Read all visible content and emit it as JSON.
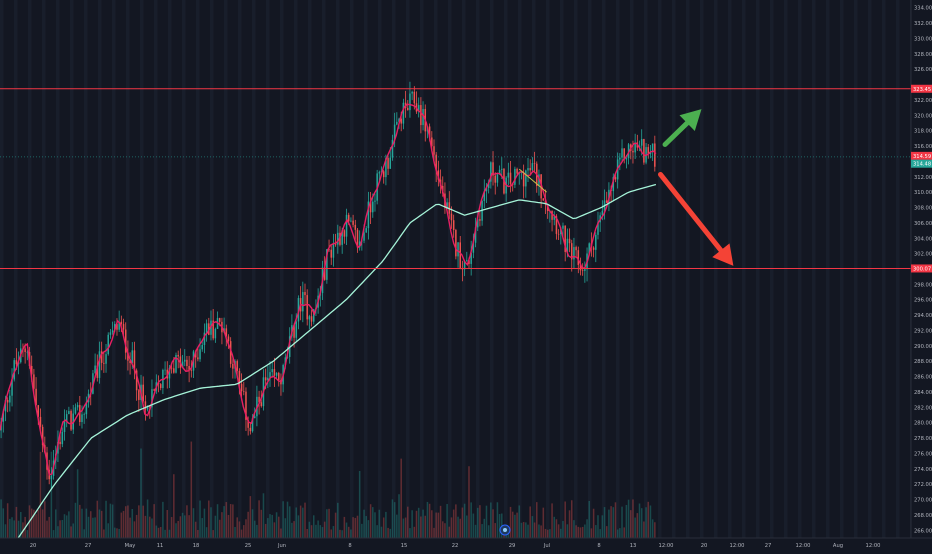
{
  "chart_data": {
    "type": "candlestick",
    "title": "",
    "colors": {
      "background": "#131722",
      "up": "#26a69a",
      "down": "#ef5350",
      "fast_ma": "#e91e63",
      "slow_ma": "#a5f3d8",
      "resistance": "#f23645",
      "price_line": "#26a69a",
      "up_arrow": "#4caf50",
      "down_arrow": "#f44336",
      "axis_text": "#b2b5be"
    },
    "y_axis": {
      "ylim": [
        265,
        335
      ],
      "ticks": [
        "266.00",
        "268.00",
        "270.00",
        "272.00",
        "274.00",
        "276.00",
        "278.00",
        "280.00",
        "282.00",
        "284.00",
        "286.00",
        "288.00",
        "290.00",
        "292.00",
        "294.00",
        "296.00",
        "298.00",
        "302.00",
        "304.00",
        "306.00",
        "308.00",
        "310.00",
        "312.00",
        "316.00",
        "318.00",
        "320.00",
        "322.00",
        "326.00",
        "328.00",
        "330.00",
        "332.00",
        "334.00"
      ]
    },
    "x_axis": {
      "labels": [
        "20",
        "27",
        "May",
        "11",
        "18",
        "25",
        "Jun",
        "8",
        "15",
        "22",
        "29",
        "Jul",
        "8",
        "13",
        "12:00",
        "20",
        "12:00",
        "27",
        "12:00",
        "Aug",
        "12:00"
      ]
    },
    "levels": [
      {
        "name": "upper-resistance",
        "value": 323.45,
        "label": "323.45"
      },
      {
        "name": "lower-support",
        "value": 300.07,
        "label": "300.07"
      }
    ],
    "price_labels": [
      {
        "name": "last-price",
        "value": 314.59,
        "label": "314.59",
        "color": "#f23645"
      },
      {
        "name": "ma-price",
        "value": 314.48,
        "label": "314.48",
        "color": "#26a69a"
      }
    ],
    "price_path": [
      [
        0,
        279
      ],
      [
        0.015,
        287
      ],
      [
        0.03,
        290
      ],
      [
        0.045,
        278
      ],
      [
        0.055,
        273
      ],
      [
        0.07,
        280
      ],
      [
        0.09,
        281
      ],
      [
        0.11,
        288
      ],
      [
        0.13,
        293
      ],
      [
        0.145,
        288
      ],
      [
        0.16,
        281
      ],
      [
        0.175,
        285
      ],
      [
        0.19,
        288
      ],
      [
        0.21,
        287
      ],
      [
        0.225,
        292
      ],
      [
        0.245,
        293
      ],
      [
        0.26,
        286
      ],
      [
        0.275,
        279
      ],
      [
        0.29,
        285
      ],
      [
        0.31,
        286
      ],
      [
        0.33,
        296
      ],
      [
        0.345,
        294
      ],
      [
        0.36,
        302
      ],
      [
        0.38,
        306
      ],
      [
        0.395,
        303
      ],
      [
        0.41,
        310
      ],
      [
        0.425,
        314
      ],
      [
        0.44,
        320
      ],
      [
        0.455,
        322
      ],
      [
        0.47,
        318
      ],
      [
        0.485,
        310
      ],
      [
        0.5,
        303
      ],
      [
        0.512,
        300
      ],
      [
        0.525,
        307
      ],
      [
        0.54,
        313
      ],
      [
        0.555,
        311
      ],
      [
        0.57,
        312
      ],
      [
        0.585,
        313
      ],
      [
        0.6,
        309
      ],
      [
        0.615,
        305
      ],
      [
        0.625,
        302
      ],
      [
        0.64,
        300
      ],
      [
        0.655,
        305
      ],
      [
        0.67,
        310
      ],
      [
        0.685,
        315
      ],
      [
        0.7,
        316
      ],
      [
        0.712,
        315
      ],
      [
        0.72,
        314.6
      ]
    ],
    "slow_ma_path": [
      [
        0.02,
        265
      ],
      [
        0.06,
        272
      ],
      [
        0.1,
        278
      ],
      [
        0.14,
        281
      ],
      [
        0.18,
        283
      ],
      [
        0.22,
        284.5
      ],
      [
        0.26,
        285
      ],
      [
        0.3,
        288
      ],
      [
        0.34,
        292
      ],
      [
        0.38,
        296
      ],
      [
        0.42,
        301
      ],
      [
        0.45,
        306
      ],
      [
        0.48,
        308.5
      ],
      [
        0.51,
        307
      ],
      [
        0.54,
        308
      ],
      [
        0.57,
        309
      ],
      [
        0.6,
        308.5
      ],
      [
        0.63,
        306.5
      ],
      [
        0.66,
        308
      ],
      [
        0.69,
        310
      ],
      [
        0.72,
        311
      ]
    ],
    "trend_line": [
      [
        0.57,
        313
      ],
      [
        0.6,
        310
      ]
    ],
    "arrows": [
      {
        "name": "up-arrow",
        "direction": "up",
        "from": [
          0.73,
          316.2
        ],
        "to": [
          0.77,
          320.8
        ]
      },
      {
        "name": "down-arrow",
        "direction": "down",
        "from": [
          0.725,
          312.3
        ],
        "to": [
          0.805,
          300.4
        ]
      }
    ],
    "plot_end_fraction": 0.72,
    "bar_count": 300,
    "volume_bar_max_fraction": 0.12
  },
  "markers": {
    "event_icon": "event-circle-icon"
  }
}
